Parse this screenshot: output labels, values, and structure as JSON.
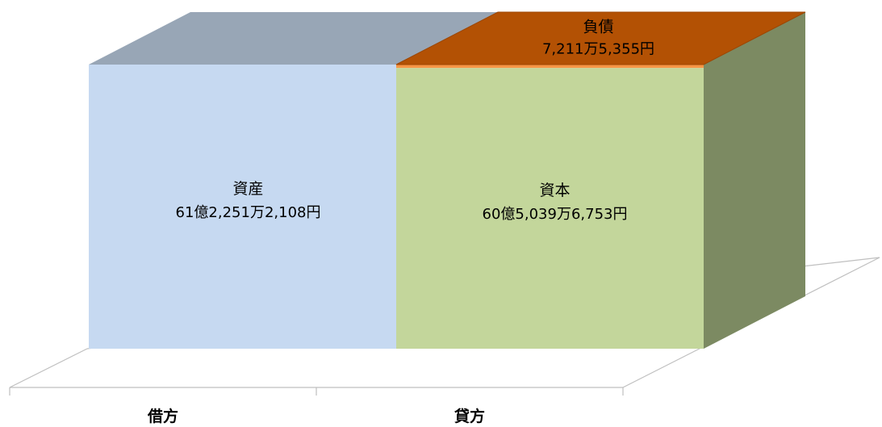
{
  "chart_data": {
    "type": "bar",
    "stacked": true,
    "three_d": true,
    "categories": [
      "借方",
      "貸方"
    ],
    "grid": false,
    "legend": "none",
    "series": [
      {
        "name": "資産",
        "category": "借方",
        "value": 6122512108,
        "label": "61億2,251万2,108円",
        "color_front": "#c6d9f1",
        "color_top": "#98a6b6"
      },
      {
        "name": "資本",
        "category": "貸方",
        "value": 6050396753,
        "label": "60億5,039万6,753円",
        "color_front": "#c3d69b",
        "color_top": "#c3d69b",
        "color_side": "#7c8a62"
      },
      {
        "name": "負債",
        "category": "貸方",
        "value": 72115355,
        "label": "7,211万5,355円",
        "color_front": "#f79646",
        "color_top": "#b35104",
        "color_side": "#7c8a62"
      }
    ]
  }
}
